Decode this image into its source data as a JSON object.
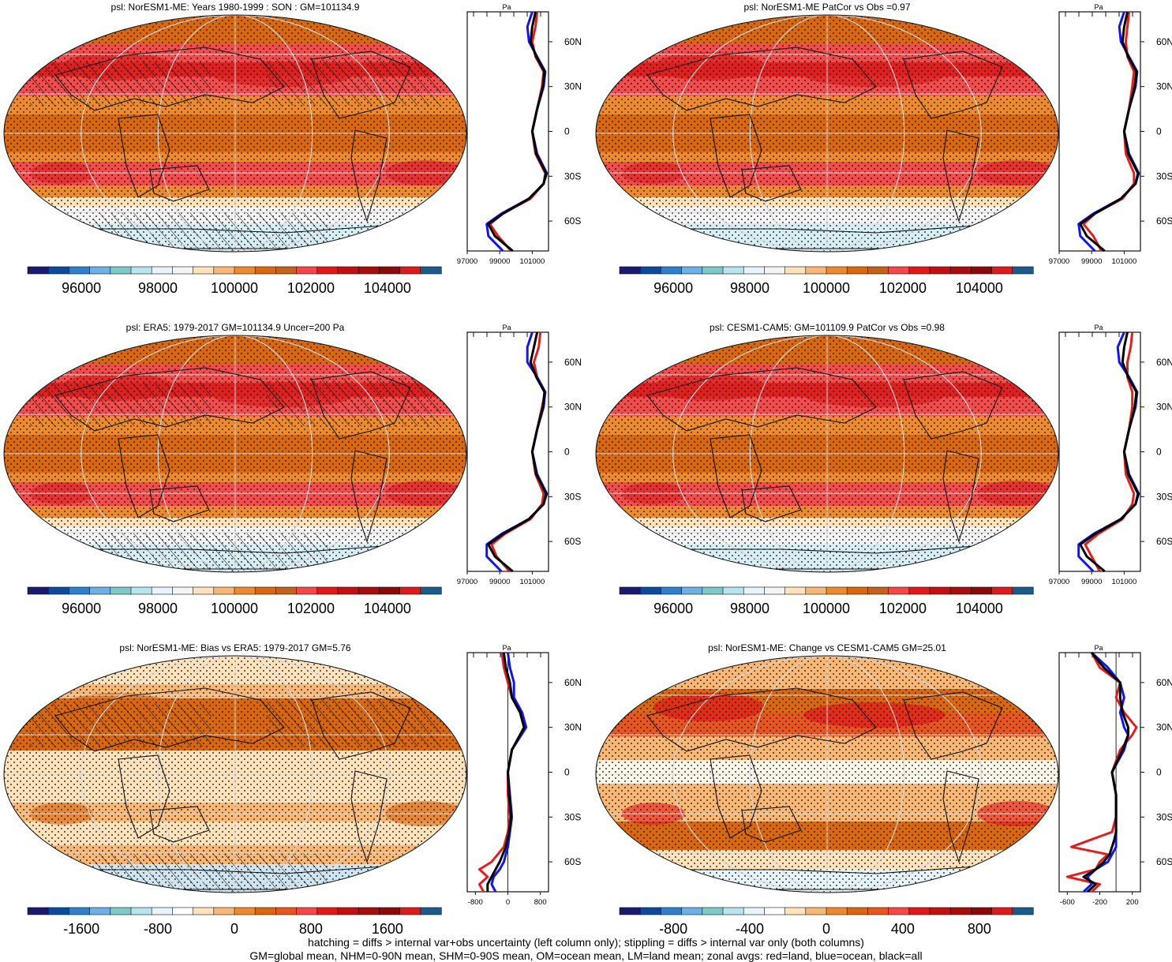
{
  "panels": [
    {
      "title": "psl: NorESM1-ME: Years 1980-1999 : SON : GM=101134.9",
      "kind": "abs",
      "profile_mode": "abs",
      "hatch": true,
      "stipple": true
    },
    {
      "title": "psl: NorESM1-ME PatCor vs Obs =0.97",
      "kind": "abs",
      "profile_mode": "abs",
      "hatch": false,
      "stipple": true
    },
    {
      "title": "psl: ERA5: 1979-2017 GM=101134.9 Uncer=200 Pa",
      "kind": "abs",
      "profile_mode": "abs",
      "hatch": true,
      "stipple": true
    },
    {
      "title": "psl: CESM1-CAM5: GM=101109.9 PatCor vs Obs =0.98",
      "kind": "abs",
      "profile_mode": "abs",
      "hatch": false,
      "stipple": true
    },
    {
      "title": "psl: NorESM1-ME: Bias vs ERA5: 1979-2017  GM=5.76",
      "kind": "bias",
      "profile_mode": "bias",
      "hatch": true,
      "stipple": true
    },
    {
      "title": "psl: NorESM1-ME: Change vs CESM1-CAM5 GM=25.01",
      "kind": "change",
      "profile_mode": "change",
      "hatch": false,
      "stipple": true
    }
  ],
  "colorbars": [
    {
      "labels": [
        "96000",
        "98000",
        "100000",
        "102000",
        "104000"
      ]
    },
    {
      "labels": [
        "96000",
        "98000",
        "100000",
        "102000",
        "104000"
      ]
    },
    {
      "labels": [
        "96000",
        "98000",
        "100000",
        "102000",
        "104000"
      ]
    },
    {
      "labels": [
        "96000",
        "98000",
        "100000",
        "102000",
        "104000"
      ]
    },
    {
      "labels": [
        "-1600",
        "-800",
        "0",
        "800",
        "1600"
      ]
    },
    {
      "labels": [
        "-800",
        "-400",
        "0",
        "400",
        "800"
      ]
    }
  ],
  "profile_axes": {
    "unit": "Pa",
    "lat_labels": [
      "60N",
      "30N",
      "0",
      "30S",
      "60S"
    ],
    "abs_ticks": [
      "97000",
      "99000",
      "101000"
    ],
    "bias_ticks": [
      "-800",
      "0",
      "800"
    ],
    "change_ticks": [
      "-600",
      "-200",
      "200"
    ]
  },
  "colors": {
    "abs_palette": [
      "#1a1a6e",
      "#0d4a9e",
      "#2f7fc9",
      "#6fb0e4",
      "#7ec9c8",
      "#b6e4ef",
      "#e5f5fb",
      "#f4f4f4",
      "#fde2bb",
      "#f9b776",
      "#ee8a2e",
      "#d9670f",
      "#c4611f",
      "#f5464a",
      "#e21818",
      "#c40f0f",
      "#a80c0c",
      "#8a0a0a",
      "#dc1c1c",
      "#1c5a8a"
    ],
    "land": "#e02020",
    "ocean": "#1515e8",
    "all": "#000000"
  },
  "chart_data": [
    {
      "type": "map+line",
      "title": "psl: NorESM1-ME: Years 1980-1999 : SON : GM=101134.9",
      "colorbar_ticks": [
        96000,
        98000,
        100000,
        102000,
        104000
      ],
      "profile_x_range": [
        97000,
        102000
      ],
      "profile_y_range": [
        -80,
        80
      ],
      "lat": [
        -80,
        -70,
        -62,
        -55,
        -45,
        -35,
        -28,
        -15,
        0,
        15,
        30,
        40,
        50,
        60,
        70,
        80
      ],
      "series": [
        {
          "name": "land",
          "values": [
            99700,
            98900,
            98400,
            99200,
            100900,
            101700,
            101800,
            101200,
            101000,
            101300,
            101600,
            101700,
            101200,
            101000,
            101200,
            101300
          ]
        },
        {
          "name": "ocean",
          "values": [
            99200,
            98300,
            98200,
            99100,
            100800,
            101700,
            101900,
            101300,
            101000,
            101300,
            101700,
            101800,
            101300,
            100800,
            100700,
            101000
          ]
        },
        {
          "name": "all",
          "values": [
            99800,
            98700,
            98300,
            99200,
            100800,
            101700,
            101850,
            101250,
            101000,
            101300,
            101650,
            101750,
            101250,
            100900,
            101000,
            101200
          ]
        }
      ]
    },
    {
      "type": "map+line",
      "title": "psl: NorESM1-ME PatCor vs Obs =0.97",
      "colorbar_ticks": [
        96000,
        98000,
        100000,
        102000,
        104000
      ],
      "profile_x_range": [
        97000,
        102000
      ],
      "profile_y_range": [
        -80,
        80
      ],
      "lat": [
        -80,
        -70,
        -62,
        -55,
        -45,
        -35,
        -28,
        -15,
        0,
        15,
        30,
        40,
        50,
        60,
        70,
        80
      ],
      "series": [
        {
          "name": "land",
          "values": [
            99600,
            99100,
            98500,
            99200,
            100900,
            101600,
            101600,
            101100,
            101000,
            101300,
            101500,
            101600,
            101200,
            101100,
            101200,
            101300
          ]
        },
        {
          "name": "ocean",
          "values": [
            99200,
            98300,
            98200,
            99100,
            100800,
            101700,
            101900,
            101300,
            101000,
            101300,
            101700,
            101800,
            101300,
            100800,
            100700,
            101000
          ]
        },
        {
          "name": "all",
          "values": [
            99800,
            98700,
            98300,
            99200,
            100800,
            101700,
            101850,
            101250,
            101000,
            101300,
            101650,
            101750,
            101250,
            100900,
            101000,
            101200
          ]
        }
      ]
    },
    {
      "type": "map+line",
      "title": "psl: ERA5: 1979-2017 GM=101134.9 Uncer=200 Pa",
      "colorbar_ticks": [
        96000,
        98000,
        100000,
        102000,
        104000
      ],
      "profile_x_range": [
        97000,
        102000
      ],
      "profile_y_range": [
        -80,
        80
      ],
      "lat": [
        -80,
        -70,
        -62,
        -55,
        -45,
        -35,
        -28,
        -15,
        0,
        15,
        30,
        40,
        50,
        60,
        70,
        80
      ],
      "series": [
        {
          "name": "land",
          "values": [
            99600,
            98800,
            98500,
            99300,
            100900,
            101600,
            101700,
            101200,
            101000,
            101300,
            101600,
            101800,
            101300,
            101100,
            101400,
            101500
          ]
        },
        {
          "name": "ocean",
          "values": [
            99100,
            98200,
            98200,
            99100,
            100800,
            101700,
            101900,
            101300,
            101000,
            101300,
            101700,
            101800,
            101300,
            100700,
            100700,
            101000
          ]
        },
        {
          "name": "all",
          "values": [
            99800,
            98700,
            98300,
            99200,
            100800,
            101700,
            101850,
            101250,
            101000,
            101300,
            101650,
            101750,
            101250,
            100900,
            101100,
            101300
          ]
        }
      ]
    },
    {
      "type": "map+line",
      "title": "psl: CESM1-CAM5: GM=101109.9 PatCor vs Obs =0.98",
      "colorbar_ticks": [
        96000,
        98000,
        100000,
        102000,
        104000
      ],
      "profile_x_range": [
        97000,
        102000
      ],
      "profile_y_range": [
        -80,
        80
      ],
      "lat": [
        -80,
        -70,
        -62,
        -55,
        -45,
        -35,
        -28,
        -15,
        0,
        15,
        30,
        40,
        50,
        60,
        70,
        80
      ],
      "series": [
        {
          "name": "land",
          "values": [
            99500,
            99000,
            98600,
            99400,
            100900,
            101500,
            101600,
            101100,
            101000,
            101300,
            101500,
            101500,
            101200,
            101200,
            101400,
            101500
          ]
        },
        {
          "name": "ocean",
          "values": [
            99100,
            98200,
            98200,
            99100,
            100800,
            101700,
            101900,
            101300,
            101000,
            101300,
            101700,
            101800,
            101300,
            100700,
            100600,
            101000
          ]
        },
        {
          "name": "all",
          "values": [
            99800,
            98700,
            98300,
            99200,
            100800,
            101700,
            101850,
            101250,
            101000,
            101300,
            101650,
            101750,
            101250,
            100900,
            101000,
            101200
          ]
        }
      ]
    },
    {
      "type": "map+line",
      "title": "psl: NorESM1-ME: Bias vs ERA5: 1979-2017  GM=5.76",
      "colorbar_ticks": [
        -1600,
        -800,
        0,
        800,
        1600
      ],
      "profile_x_range": [
        -1000,
        1000
      ],
      "profile_y_range": [
        -80,
        80
      ],
      "lat": [
        -80,
        -75,
        -70,
        -65,
        -60,
        -50,
        -40,
        -30,
        -15,
        0,
        15,
        30,
        40,
        50,
        60,
        70,
        80
      ],
      "series": [
        {
          "name": "land",
          "values": [
            -600,
            -700,
            -500,
            -700,
            -400,
            -100,
            0,
            50,
            0,
            0,
            100,
            400,
            300,
            100,
            0,
            -100,
            -150
          ]
        },
        {
          "name": "ocean",
          "values": [
            -300,
            -400,
            -350,
            -200,
            -100,
            0,
            50,
            100,
            50,
            0,
            100,
            450,
            350,
            150,
            150,
            50,
            0
          ]
        },
        {
          "name": "all",
          "values": [
            -500,
            -500,
            -400,
            -300,
            -200,
            -50,
            30,
            80,
            30,
            0,
            100,
            400,
            300,
            100,
            50,
            -50,
            -100
          ]
        }
      ]
    },
    {
      "type": "map+line",
      "title": "psl: NorESM1-ME: Change vs CESM1-CAM5 GM=25.01",
      "colorbar_ticks": [
        -800,
        -400,
        0,
        400,
        800
      ],
      "profile_x_range": [
        -700,
        300
      ],
      "profile_y_range": [
        -80,
        80
      ],
      "lat": [
        -80,
        -75,
        -70,
        -65,
        -60,
        -55,
        -50,
        -45,
        -40,
        -30,
        -15,
        0,
        15,
        25,
        30,
        40,
        50,
        60,
        70,
        80
      ],
      "series": [
        {
          "name": "land",
          "values": [
            -300,
            -200,
            -600,
            -250,
            -200,
            -100,
            -550,
            -300,
            -50,
            0,
            0,
            -50,
            50,
            200,
            250,
            100,
            0,
            50,
            -200,
            -300
          ]
        },
        {
          "name": "ocean",
          "values": [
            -400,
            -300,
            -350,
            -250,
            -100,
            -50,
            0,
            0,
            0,
            0,
            0,
            -50,
            100,
            150,
            100,
            50,
            100,
            50,
            -100,
            -300
          ]
        },
        {
          "name": "all",
          "values": [
            -350,
            -250,
            -400,
            -250,
            -150,
            -80,
            -50,
            -20,
            0,
            0,
            0,
            -50,
            80,
            150,
            150,
            80,
            50,
            50,
            -150,
            -300
          ]
        }
      ]
    }
  ],
  "footer": [
    "hatching = diffs > internal var+obs uncertainty (left column only); stippling = diffs > internal var only (both columns)",
    "GM=global mean, NHM=0-90N mean, SHM=0-90S mean, OM=ocean mean, LM=land mean; zonal avgs: red=land, blue=ocean, black=all"
  ]
}
